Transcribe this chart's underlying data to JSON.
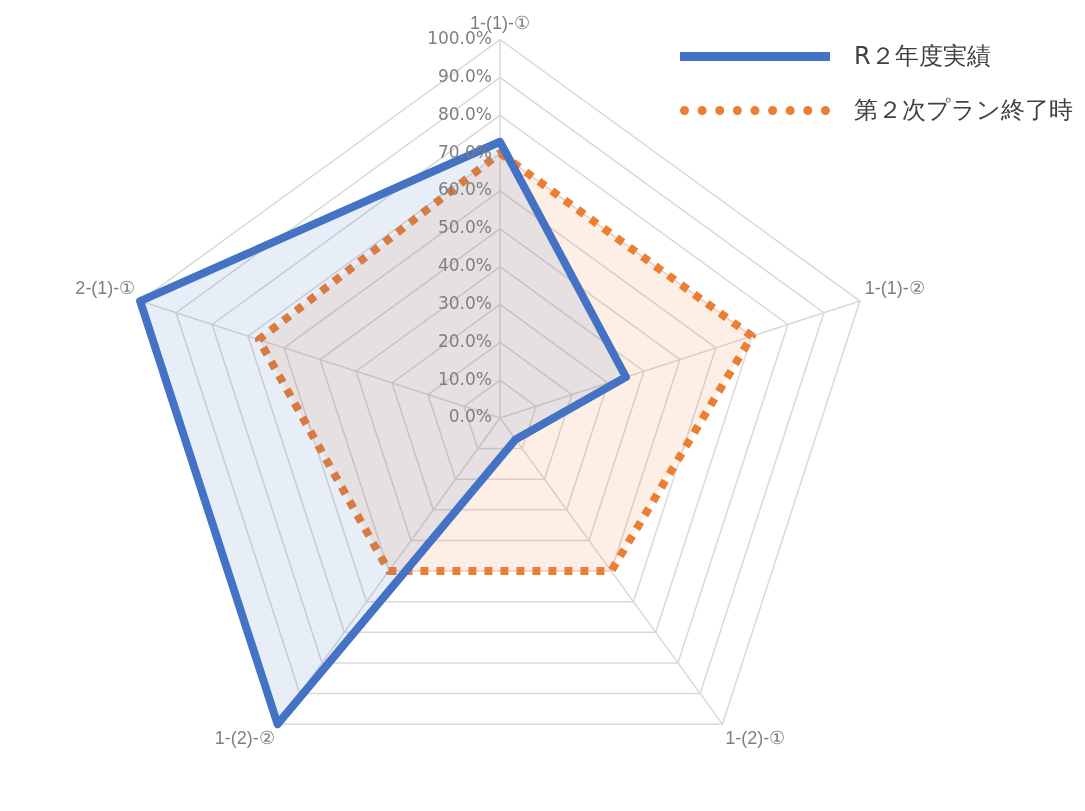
{
  "chart_data": {
    "type": "radar",
    "categories": [
      "1-(1)-①",
      "1-(1)-②",
      "1-(2)-①",
      "1-(2)-②",
      "2-(1)-①"
    ],
    "series": [
      {
        "name": "R２年度実績",
        "color": "#4472c4",
        "line_style": "solid",
        "values": [
          73,
          35,
          7,
          100,
          100
        ]
      },
      {
        "name": "第２次プラン終了時",
        "color": "#ed7d31",
        "line_style": "dotted",
        "values": [
          70,
          70,
          50,
          50,
          67
        ]
      }
    ],
    "ylim": [
      0,
      100
    ],
    "yticks": [
      {
        "value": 0,
        "label": "0.0%"
      },
      {
        "value": 10,
        "label": "10.0%"
      },
      {
        "value": 20,
        "label": "20.0%"
      },
      {
        "value": 30,
        "label": "30.0%"
      },
      {
        "value": 40,
        "label": "40.0%"
      },
      {
        "value": 50,
        "label": "50.0%"
      },
      {
        "value": 60,
        "label": "60.0%"
      },
      {
        "value": 70,
        "label": "70.0%"
      },
      {
        "value": 80,
        "label": "80.0%"
      },
      {
        "value": 90,
        "label": "90.0%"
      },
      {
        "value": 100,
        "label": "100.0%"
      }
    ],
    "grid": true,
    "legend": "top right",
    "marker": "none"
  }
}
